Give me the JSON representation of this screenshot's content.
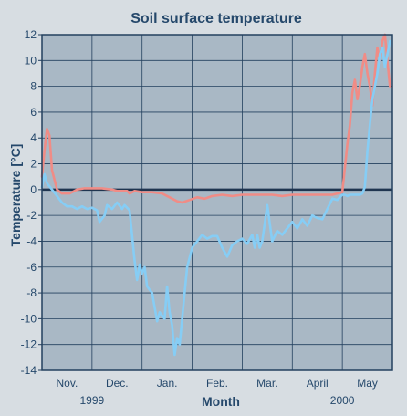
{
  "chart_data": {
    "type": "line",
    "title": "Soil surface temperature",
    "xlabel": "Month",
    "ylabel": "Temperature [°C]",
    "ylim": [
      -14,
      12
    ],
    "xlim": [
      0,
      7
    ],
    "grid": true,
    "yticks": [
      12,
      10,
      8,
      6,
      4,
      2,
      0,
      -2,
      -4,
      -6,
      -8,
      -10,
      -12,
      -14
    ],
    "xticks": [
      {
        "label": "Nov.",
        "x": 0.5
      },
      {
        "label": "Dec.",
        "x": 1.5
      },
      {
        "label": "Jan.",
        "x": 2.5
      },
      {
        "label": "Feb.",
        "x": 3.5
      },
      {
        "label": "Mar.",
        "x": 4.5
      },
      {
        "label": "April",
        "x": 5.5
      },
      {
        "label": "May",
        "x": 6.5
      }
    ],
    "year_labels": [
      {
        "label": "1999",
        "x": 1.0
      },
      {
        "label": "2000",
        "x": 6.0
      }
    ],
    "colors": {
      "plot_bg": "#a9b8c5",
      "grid": "#23405e",
      "zero_line": "#1f3550",
      "text": "#25486b",
      "series_red": "#f08c86",
      "series_blue": "#86cdf5"
    },
    "series": [
      {
        "color": "#f08c86",
        "x": [
          0.0,
          0.05,
          0.1,
          0.15,
          0.2,
          0.3,
          0.4,
          0.55,
          0.7,
          0.85,
          1.0,
          1.2,
          1.4,
          1.5,
          1.7,
          1.75,
          1.85,
          2.0,
          2.2,
          2.4,
          2.55,
          2.7,
          2.8,
          2.95,
          3.1,
          3.25,
          3.4,
          3.6,
          3.8,
          4.0,
          4.2,
          4.4,
          4.6,
          4.8,
          5.0,
          5.2,
          5.4,
          5.6,
          5.8,
          6.0,
          6.1,
          6.15,
          6.2,
          6.25,
          6.3,
          6.35,
          6.4,
          6.45,
          6.5,
          6.55,
          6.6,
          6.65,
          6.7,
          6.75,
          6.8,
          6.85,
          6.9,
          6.95
        ],
        "y": [
          1.0,
          3.0,
          4.7,
          4.2,
          1.5,
          0.0,
          -0.3,
          -0.3,
          0.0,
          0.1,
          0.1,
          0.1,
          0.0,
          -0.1,
          -0.1,
          -0.3,
          -0.1,
          -0.2,
          -0.2,
          -0.3,
          -0.6,
          -0.9,
          -1.0,
          -0.8,
          -0.6,
          -0.7,
          -0.5,
          -0.4,
          -0.5,
          -0.4,
          -0.4,
          -0.4,
          -0.4,
          -0.5,
          -0.4,
          -0.4,
          -0.4,
          -0.4,
          -0.4,
          -0.2,
          3.5,
          5.0,
          7.5,
          8.5,
          7.0,
          8.0,
          9.5,
          10.5,
          9.0,
          8.0,
          6.5,
          9.0,
          11.0,
          10.0,
          11.5,
          12.0,
          10.0,
          8.0
        ]
      },
      {
        "color": "#86cdf5",
        "x": [
          0.0,
          0.05,
          0.1,
          0.2,
          0.3,
          0.4,
          0.5,
          0.6,
          0.7,
          0.8,
          0.9,
          1.0,
          1.1,
          1.15,
          1.25,
          1.3,
          1.4,
          1.5,
          1.6,
          1.65,
          1.75,
          1.8,
          1.85,
          1.9,
          1.95,
          2.0,
          2.05,
          2.1,
          2.2,
          2.3,
          2.35,
          2.45,
          2.5,
          2.55,
          2.6,
          2.65,
          2.7,
          2.75,
          2.8,
          2.85,
          2.9,
          3.0,
          3.1,
          3.2,
          3.3,
          3.4,
          3.5,
          3.6,
          3.7,
          3.8,
          3.9,
          4.0,
          4.1,
          4.2,
          4.25,
          4.3,
          4.35,
          4.4,
          4.5,
          4.6,
          4.7,
          4.8,
          4.9,
          5.0,
          5.1,
          5.2,
          5.3,
          5.4,
          5.5,
          5.6,
          5.7,
          5.8,
          5.9,
          6.0,
          6.05,
          6.1,
          6.15,
          6.2,
          6.25,
          6.3,
          6.35,
          6.4,
          6.45,
          6.5,
          6.55,
          6.6,
          6.65,
          6.7,
          6.75,
          6.8,
          6.85,
          6.9,
          6.95
        ],
        "y": [
          0.2,
          1.2,
          0.5,
          0.0,
          -0.5,
          -1.0,
          -1.3,
          -1.3,
          -1.5,
          -1.3,
          -1.5,
          -1.4,
          -1.6,
          -2.5,
          -2.0,
          -1.2,
          -1.5,
          -1.0,
          -1.5,
          -1.2,
          -1.6,
          -3.5,
          -5.5,
          -7.0,
          -5.8,
          -6.5,
          -6.0,
          -7.5,
          -8.0,
          -10.2,
          -9.5,
          -10.0,
          -7.5,
          -9.5,
          -10.5,
          -12.8,
          -11.5,
          -12.0,
          -10.0,
          -8.0,
          -6.0,
          -4.5,
          -4.0,
          -3.5,
          -3.8,
          -3.6,
          -3.6,
          -4.5,
          -5.2,
          -4.3,
          -4.0,
          -3.8,
          -4.2,
          -3.5,
          -4.5,
          -3.5,
          -4.5,
          -4.0,
          -1.2,
          -4.0,
          -3.2,
          -3.5,
          -3.0,
          -2.5,
          -3.0,
          -2.3,
          -2.8,
          -2.0,
          -2.2,
          -2.3,
          -1.5,
          -0.7,
          -0.8,
          -0.4,
          -0.4,
          -0.5,
          -0.4,
          -0.4,
          -0.4,
          -0.4,
          -0.4,
          -0.3,
          0.2,
          3.0,
          5.0,
          7.0,
          8.0,
          9.0,
          10.5,
          11.0,
          9.5,
          10.5,
          11.5
        ]
      }
    ]
  }
}
